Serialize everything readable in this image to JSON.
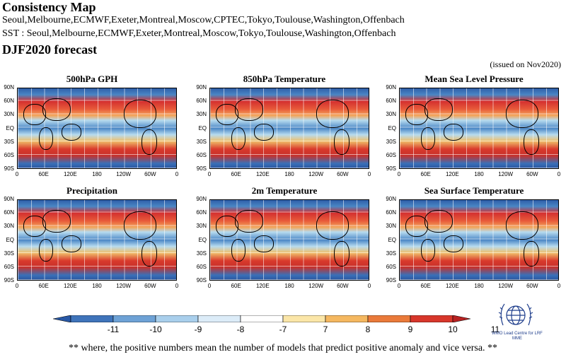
{
  "header": {
    "title": "Consistency Map",
    "models_line": "Seoul,Melbourne,ECMWF,Exeter,Montreal,Moscow,CPTEC,Tokyo,Toulouse,Washington,Offenbach",
    "sst_line": "SST : Seoul,Melbourne,ECMWF,Exeter,Montreal,Moscow,Tokyo,Toulouse,Washington,Offenbach",
    "forecast": "DJF2020 forecast",
    "issued": "(issued on Nov2020)"
  },
  "lat_labels": [
    "90N",
    "60N",
    "30N",
    "EQ",
    "30S",
    "60S",
    "90S"
  ],
  "lon_labels": [
    "0",
    "60E",
    "120E",
    "180",
    "120W",
    "60W",
    "0"
  ],
  "panels": [
    {
      "title": "500hPa GPH"
    },
    {
      "title": "850hPa Temperature"
    },
    {
      "title": "Mean Sea Level Pressure"
    },
    {
      "title": "Precipitation"
    },
    {
      "title": "2m Temperature"
    },
    {
      "title": "Sea Surface Temperature"
    }
  ],
  "colorbar": {
    "labels": [
      "-11",
      "-10",
      "-9",
      "-8",
      "-7",
      "7",
      "8",
      "9",
      "10",
      "11"
    ],
    "colors": [
      "#2858a6",
      "#3f74bb",
      "#6ea2d6",
      "#a9cfec",
      "#dcecf8",
      "#ffffff",
      "#fbe6a8",
      "#f5b860",
      "#ea7a3a",
      "#d8372b",
      "#b82222"
    ]
  },
  "logo_text": "WMO Lead Centre for LRF MME",
  "footnote": "** where, the positive numbers mean the number of models that predict positive anomaly and vice versa. **"
}
